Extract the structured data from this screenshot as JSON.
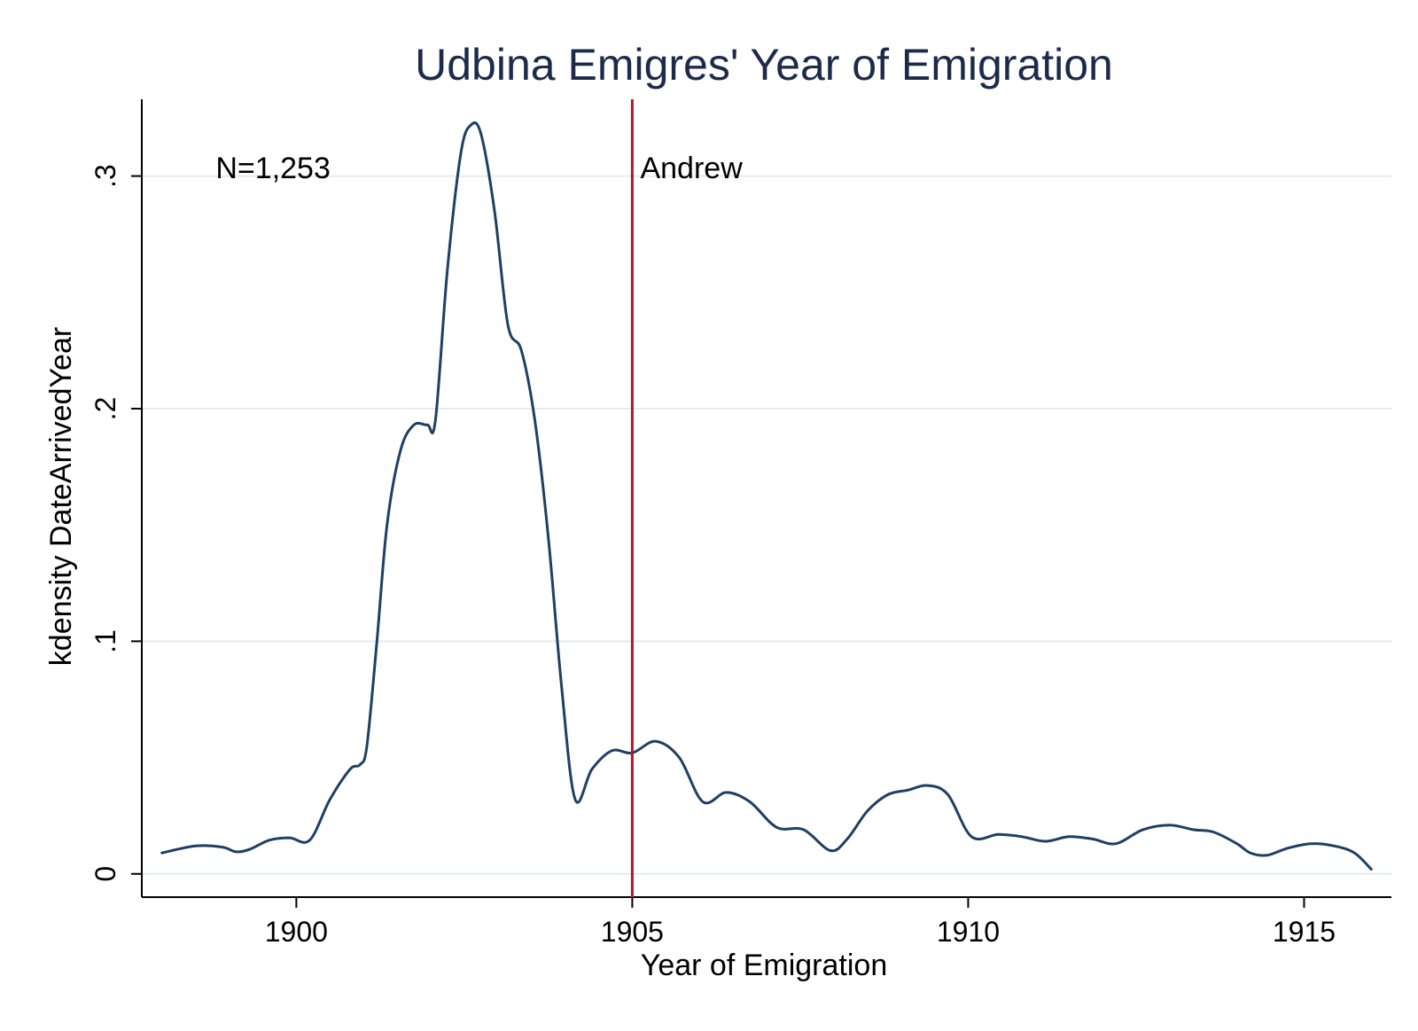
{
  "chart_data": {
    "type": "line",
    "title": "Udbina Emigres' Year of Emigration",
    "xlabel": "Year of Emigration",
    "ylabel": "kdensity DateArrivedYear",
    "xlim": [
      1897.7,
      1916.3
    ],
    "ylim": [
      -0.01,
      0.333
    ],
    "x_ticks": [
      {
        "value": 1900,
        "label": "1900"
      },
      {
        "value": 1905,
        "label": "1905"
      },
      {
        "value": 1910,
        "label": "1910"
      },
      {
        "value": 1915,
        "label": "1915"
      }
    ],
    "y_ticks": [
      {
        "value": 0,
        "label": "0"
      },
      {
        "value": 0.1,
        "label": ".1"
      },
      {
        "value": 0.2,
        "label": ".2"
      },
      {
        "value": 0.3,
        "label": ".3"
      }
    ],
    "grid": true,
    "series": [
      {
        "color": "#1f3f63",
        "x": [
          1898.0,
          1898.5,
          1898.9,
          1899.1,
          1899.3,
          1899.6,
          1899.9,
          1900.2,
          1900.5,
          1900.8,
          1900.95,
          1901.05,
          1901.2,
          1901.35,
          1901.55,
          1901.75,
          1901.95,
          1902.07,
          1902.25,
          1902.45,
          1902.6,
          1902.75,
          1902.95,
          1903.15,
          1903.35,
          1903.55,
          1903.75,
          1903.95,
          1904.15,
          1904.4,
          1904.7,
          1905.0,
          1905.35,
          1905.7,
          1906.05,
          1906.4,
          1906.75,
          1907.15,
          1907.55,
          1907.95,
          1908.2,
          1908.5,
          1908.8,
          1909.1,
          1909.4,
          1909.7,
          1910.05,
          1910.45,
          1910.8,
          1911.15,
          1911.5,
          1911.85,
          1912.2,
          1912.6,
          1913.0,
          1913.35,
          1913.65,
          1914.0,
          1914.2,
          1914.45,
          1914.75,
          1915.1,
          1915.45,
          1915.75,
          1916.0
        ],
        "y": [
          0.009,
          0.012,
          0.0115,
          0.0095,
          0.0105,
          0.0145,
          0.0155,
          0.0145,
          0.032,
          0.045,
          0.047,
          0.055,
          0.1,
          0.15,
          0.182,
          0.193,
          0.193,
          0.195,
          0.26,
          0.31,
          0.322,
          0.318,
          0.285,
          0.236,
          0.225,
          0.195,
          0.145,
          0.08,
          0.032,
          0.045,
          0.053,
          0.052,
          0.057,
          0.05,
          0.031,
          0.035,
          0.031,
          0.02,
          0.019,
          0.01,
          0.015,
          0.027,
          0.034,
          0.036,
          0.038,
          0.034,
          0.016,
          0.017,
          0.016,
          0.014,
          0.016,
          0.015,
          0.013,
          0.019,
          0.021,
          0.019,
          0.018,
          0.013,
          0.009,
          0.008,
          0.011,
          0.013,
          0.012,
          0.009,
          0.002
        ]
      }
    ],
    "annotations": [
      {
        "text": "N=1,253",
        "x": 1898.8,
        "y": 0.299
      },
      {
        "text": "Andrew",
        "x": 1905.12,
        "y": 0.299
      }
    ],
    "reference_line": {
      "x": 1905,
      "color": "#b5152b"
    }
  }
}
